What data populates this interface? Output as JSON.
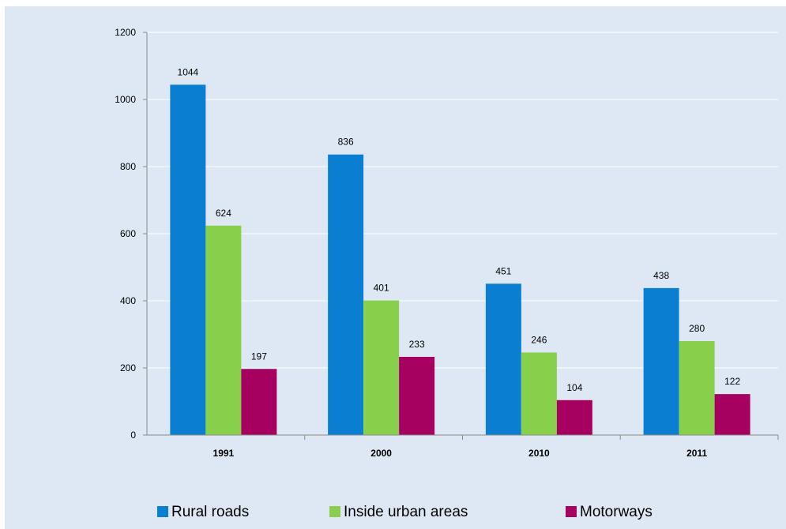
{
  "chart_data": {
    "type": "bar",
    "categories": [
      "1991",
      "2000",
      "2010",
      "2011"
    ],
    "series": [
      {
        "name": "Rural roads",
        "color": "#0a7fd1",
        "values": [
          1044,
          836,
          451,
          438
        ]
      },
      {
        "name": "Inside urban areas",
        "color": "#88d04b",
        "values": [
          624,
          401,
          246,
          280
        ]
      },
      {
        "name": "Motorways",
        "color": "#a60060",
        "values": [
          197,
          233,
          104,
          122
        ]
      }
    ],
    "y_ticks": [
      "0",
      "200",
      "400",
      "600",
      "800",
      "1000",
      "1200"
    ],
    "ylim": [
      0,
      1200
    ],
    "grid": true,
    "legend_position": "bottom",
    "background_color": "#dde8f4"
  }
}
